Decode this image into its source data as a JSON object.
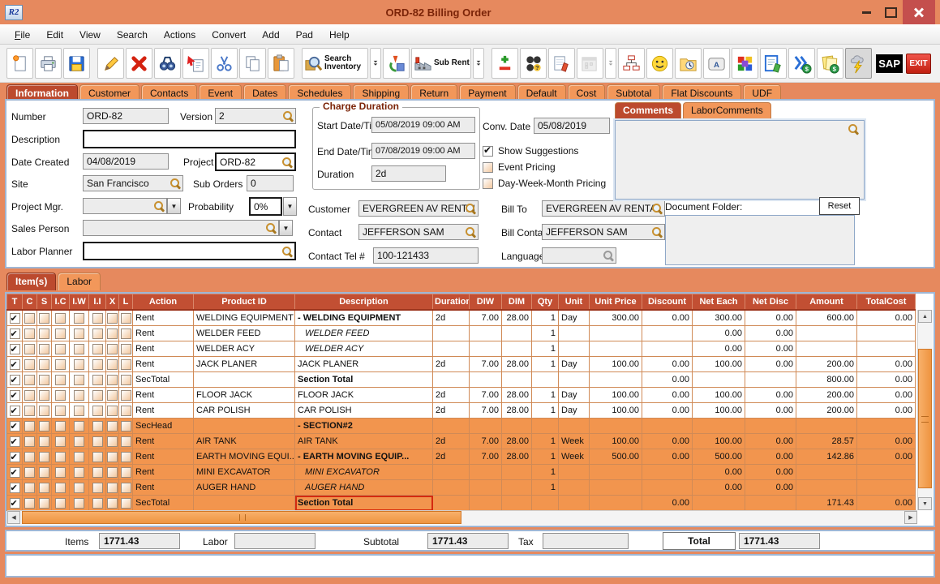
{
  "window": {
    "app_icon": "R2",
    "title": "ORD-82 Billing Order"
  },
  "menu": {
    "items": [
      "File",
      "Edit",
      "View",
      "Search",
      "Actions",
      "Convert",
      "Add",
      "Pad",
      "Help"
    ]
  },
  "toolbar": {
    "buttons": [
      {
        "name": "new-order-button",
        "icon": "page-new"
      },
      {
        "name": "print-button",
        "icon": "print"
      },
      {
        "name": "save-button",
        "icon": "save"
      },
      {
        "name": "edit-button",
        "icon": "pencil",
        "gap": true
      },
      {
        "name": "delete-button",
        "icon": "red-x"
      },
      {
        "name": "find-button",
        "icon": "binoculars"
      },
      {
        "name": "copy-special-button",
        "icon": "copy-arrow"
      },
      {
        "name": "cut-button",
        "icon": "scissors"
      },
      {
        "name": "copy-button",
        "icon": "copy"
      },
      {
        "name": "paste-button",
        "icon": "paste"
      },
      {
        "name": "search-inventory-button",
        "icon": "search-inventory",
        "label": "Search Inventory",
        "gap": true
      },
      {
        "name": "search-inventory-dropdown",
        "icon": "double-arrow",
        "narrow": true
      },
      {
        "name": "convert-3d-button",
        "icon": "convert-3d"
      },
      {
        "name": "sub-rent-button",
        "icon": "factory",
        "label": "Sub Rent"
      },
      {
        "name": "sub-rent-dropdown",
        "icon": "double-arrow",
        "narrow": true
      },
      {
        "name": "add-remove-button",
        "icon": "plus-minus",
        "gap": true
      },
      {
        "name": "contacts-group-button",
        "icon": "circles-question"
      },
      {
        "name": "notepad-button",
        "icon": "notepad-pencil"
      },
      {
        "name": "calendar-button",
        "icon": "calendar",
        "disabled": true
      },
      {
        "name": "calendar-dropdown",
        "icon": "double-arrow",
        "narrow": true,
        "disabled": true
      },
      {
        "name": "org-chart-button",
        "icon": "org-chart"
      },
      {
        "name": "smiley-button",
        "icon": "smiley"
      },
      {
        "name": "folder-history-button",
        "icon": "folder-clock"
      },
      {
        "name": "shortcut-key-button",
        "icon": "keyboard-key"
      },
      {
        "name": "cubes-button",
        "icon": "cubes"
      },
      {
        "name": "edit-document-button",
        "icon": "doc-pencil"
      },
      {
        "name": "invoice-forward-button",
        "icon": "chevron-dollar"
      },
      {
        "name": "billing-notes-button",
        "icon": "notes-dollar"
      },
      {
        "name": "quick-bill-button",
        "icon": "lightning",
        "pressed": true
      },
      {
        "name": "sap-button",
        "icon": "badge",
        "badge": "sap",
        "label": "SAP",
        "push": true
      },
      {
        "name": "exit-button",
        "icon": "badge",
        "badge": "exit",
        "label": "EXIT"
      }
    ]
  },
  "tabs": {
    "active": "Information",
    "items": [
      "Information",
      "Customer",
      "Contacts",
      "Event",
      "Dates",
      "Schedules",
      "Shipping",
      "Return",
      "Payment",
      "Default",
      "Cost",
      "Subtotal",
      "Flat Discounts",
      "UDF"
    ]
  },
  "info": {
    "number_label": "Number",
    "number": "ORD-82",
    "version_label": "Version",
    "version": "2",
    "description_label": "Description",
    "description": "",
    "date_created_label": "Date Created",
    "date_created": "04/08/2019",
    "project_label": "Project",
    "project": "ORD-82",
    "site_label": "Site",
    "site": "San Francisco",
    "sub_orders_label": "Sub Orders",
    "sub_orders": "0",
    "project_mgr_label": "Project Mgr.",
    "project_mgr": "",
    "probability_label": "Probability",
    "probability": "0%",
    "sales_person_label": "Sales Person",
    "sales_person": "",
    "labor_planner_label": "Labor Planner",
    "labor_planner": "",
    "charge_duration_title": "Charge Duration",
    "start_label": "Start Date/Time",
    "start": "05/08/2019 09:00 AM",
    "end_label": "End Date/Time",
    "end": "07/08/2019 09:00 AM",
    "duration_label": "Duration",
    "duration": "2d",
    "conv_date_label": "Conv. Date",
    "conv_date": "05/08/2019",
    "checkboxes": [
      {
        "label": "Show Suggestions",
        "checked": true
      },
      {
        "label": "Event Pricing",
        "checked": false
      },
      {
        "label": "Day-Week-Month Pricing",
        "checked": false
      }
    ],
    "customer_label": "Customer",
    "customer": "EVERGREEN AV RENTALS",
    "bill_to_label": "Bill To",
    "bill_to": "EVERGREEN AV RENTALS",
    "contact_label": "Contact",
    "contact": "JEFFERSON SAM",
    "bill_contact_label": "Bill Contact",
    "bill_contact": "JEFFERSON SAM",
    "contact_tel_label": "Contact Tel #",
    "contact_tel": "100-121433",
    "language_label": "Language",
    "language": ""
  },
  "comments": {
    "tabs": [
      "Comments",
      "LaborComments"
    ],
    "active": "Comments",
    "text": "",
    "document_folder_label": "Document Folder:",
    "reset_label": "Reset",
    "document_folder_text": ""
  },
  "items_section": {
    "tabs": [
      "Item(s)",
      "Labor"
    ],
    "active": "Item(s)"
  },
  "table": {
    "columns": [
      "T",
      "C",
      "S",
      "I.C",
      "I.W",
      "I.I",
      "X",
      "L",
      "Action",
      "Product ID",
      "Description",
      "Duration",
      "DIW",
      "DIM",
      "Qty",
      "Unit",
      "Unit Price",
      "Discount",
      "Net Each",
      "Net Disc",
      "Amount",
      "TotalCost"
    ],
    "rows": [
      {
        "checked": true,
        "selected": false,
        "action": "Rent",
        "product": "WELDING EQUIPMENT",
        "desc": "-  WELDING EQUIPMENT",
        "style": "bold",
        "duration": "2d",
        "diw": "7.00",
        "dim": "28.00",
        "qty": "1",
        "unit": "Day",
        "unit_price": "300.00",
        "discount": "0.00",
        "net_each": "300.00",
        "net_disc": "0.00",
        "amount": "600.00",
        "total_cost": "0.00"
      },
      {
        "checked": true,
        "selected": false,
        "action": "Rent",
        "product": "WELDER FEED",
        "desc": "WELDER FEED",
        "style": "italic",
        "duration": "",
        "diw": "",
        "dim": "",
        "qty": "1",
        "unit": "",
        "unit_price": "",
        "discount": "",
        "net_each": "0.00",
        "net_disc": "0.00",
        "amount": "",
        "total_cost": ""
      },
      {
        "checked": true,
        "selected": false,
        "action": "Rent",
        "product": "WELDER ACY",
        "desc": "WELDER ACY",
        "style": "italic",
        "duration": "",
        "diw": "",
        "dim": "",
        "qty": "1",
        "unit": "",
        "unit_price": "",
        "discount": "",
        "net_each": "0.00",
        "net_disc": "0.00",
        "amount": "",
        "total_cost": ""
      },
      {
        "checked": true,
        "selected": false,
        "action": "Rent",
        "product": "JACK PLANER",
        "desc": "JACK PLANER",
        "style": "normal",
        "duration": "2d",
        "diw": "7.00",
        "dim": "28.00",
        "qty": "1",
        "unit": "Day",
        "unit_price": "100.00",
        "discount": "0.00",
        "net_each": "100.00",
        "net_disc": "0.00",
        "amount": "200.00",
        "total_cost": "0.00"
      },
      {
        "checked": true,
        "selected": false,
        "action": "SecTotal",
        "product": "",
        "desc": "Section Total",
        "style": "bold",
        "duration": "",
        "diw": "",
        "dim": "",
        "qty": "",
        "unit": "",
        "unit_price": "",
        "discount": "0.00",
        "net_each": "",
        "net_disc": "",
        "amount": "800.00",
        "total_cost": "0.00"
      },
      {
        "checked": true,
        "selected": false,
        "action": "Rent",
        "product": "FLOOR JACK",
        "desc": "FLOOR JACK",
        "style": "normal",
        "duration": "2d",
        "diw": "7.00",
        "dim": "28.00",
        "qty": "1",
        "unit": "Day",
        "unit_price": "100.00",
        "discount": "0.00",
        "net_each": "100.00",
        "net_disc": "0.00",
        "amount": "200.00",
        "total_cost": "0.00"
      },
      {
        "checked": true,
        "selected": false,
        "action": "Rent",
        "product": "CAR POLISH",
        "desc": "CAR POLISH",
        "style": "normal",
        "duration": "2d",
        "diw": "7.00",
        "dim": "28.00",
        "qty": "1",
        "unit": "Day",
        "unit_price": "100.00",
        "discount": "0.00",
        "net_each": "100.00",
        "net_disc": "0.00",
        "amount": "200.00",
        "total_cost": "0.00"
      },
      {
        "checked": true,
        "selected": true,
        "action": "SecHead",
        "product": "",
        "desc": "-  SECTION#2",
        "style": "bold",
        "duration": "",
        "diw": "",
        "dim": "",
        "qty": "",
        "unit": "",
        "unit_price": "",
        "discount": "",
        "net_each": "",
        "net_disc": "",
        "amount": "",
        "total_cost": ""
      },
      {
        "checked": true,
        "selected": true,
        "action": "Rent",
        "product": "AIR TANK",
        "desc": "AIR TANK",
        "style": "normal",
        "duration": "2d",
        "diw": "7.00",
        "dim": "28.00",
        "qty": "1",
        "unit": "Week",
        "unit_price": "100.00",
        "discount": "0.00",
        "net_each": "100.00",
        "net_disc": "0.00",
        "amount": "28.57",
        "total_cost": "0.00"
      },
      {
        "checked": true,
        "selected": true,
        "action": "Rent",
        "product": "EARTH MOVING EQUI...",
        "desc": "-  EARTH MOVING EQUIP...",
        "style": "bold",
        "duration": "2d",
        "diw": "7.00",
        "dim": "28.00",
        "qty": "1",
        "unit": "Week",
        "unit_price": "500.00",
        "discount": "0.00",
        "net_each": "500.00",
        "net_disc": "0.00",
        "amount": "142.86",
        "total_cost": "0.00"
      },
      {
        "checked": true,
        "selected": true,
        "action": "Rent",
        "product": "MINI EXCAVATOR",
        "desc": "MINI EXCAVATOR",
        "style": "italic",
        "duration": "",
        "diw": "",
        "dim": "",
        "qty": "1",
        "unit": "",
        "unit_price": "",
        "discount": "",
        "net_each": "0.00",
        "net_disc": "0.00",
        "amount": "",
        "total_cost": ""
      },
      {
        "checked": true,
        "selected": true,
        "action": "Rent",
        "product": "AUGER HAND",
        "desc": "AUGER HAND",
        "style": "italic",
        "duration": "",
        "diw": "",
        "dim": "",
        "qty": "1",
        "unit": "",
        "unit_price": "",
        "discount": "",
        "net_each": "0.00",
        "net_disc": "0.00",
        "amount": "",
        "total_cost": ""
      },
      {
        "checked": true,
        "selected": true,
        "focus": true,
        "action": "SecTotal",
        "product": "",
        "desc": "Section Total",
        "style": "bold",
        "duration": "",
        "diw": "",
        "dim": "",
        "qty": "",
        "unit": "",
        "unit_price": "",
        "discount": "0.00",
        "net_each": "",
        "net_disc": "",
        "amount": "171.43",
        "total_cost": "0.00"
      }
    ]
  },
  "totals": {
    "items_label": "Items",
    "items": "1771.43",
    "labor_label": "Labor",
    "labor": "",
    "subtotal_label": "Subtotal",
    "subtotal": "1771.43",
    "tax_label": "Tax",
    "tax": "",
    "total_label": "Total",
    "total": "1771.43"
  },
  "colors": {
    "frame": "#E6895E",
    "tab_active": "#BC4A2E",
    "grid_header": "#C24F33",
    "row_selected": "#F2954E",
    "close_button": "#C44F4D",
    "focus_outline": "#D42A10"
  }
}
